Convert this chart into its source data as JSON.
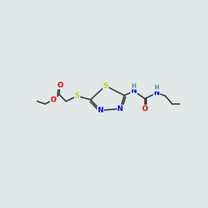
{
  "bg_color": "#e2e8e8",
  "bond_color": "#3a3a3a",
  "bond_width": 1.4,
  "figsize": [
    3.0,
    3.0
  ],
  "dpi": 100,
  "colors": {
    "C": "#3a3a3a",
    "N": "#0000ee",
    "O": "#ee0000",
    "S": "#cccc00",
    "H": "#4a9090"
  },
  "font_size": 7.5,
  "xlim": [
    0,
    10
  ],
  "ylim": [
    0,
    10
  ]
}
